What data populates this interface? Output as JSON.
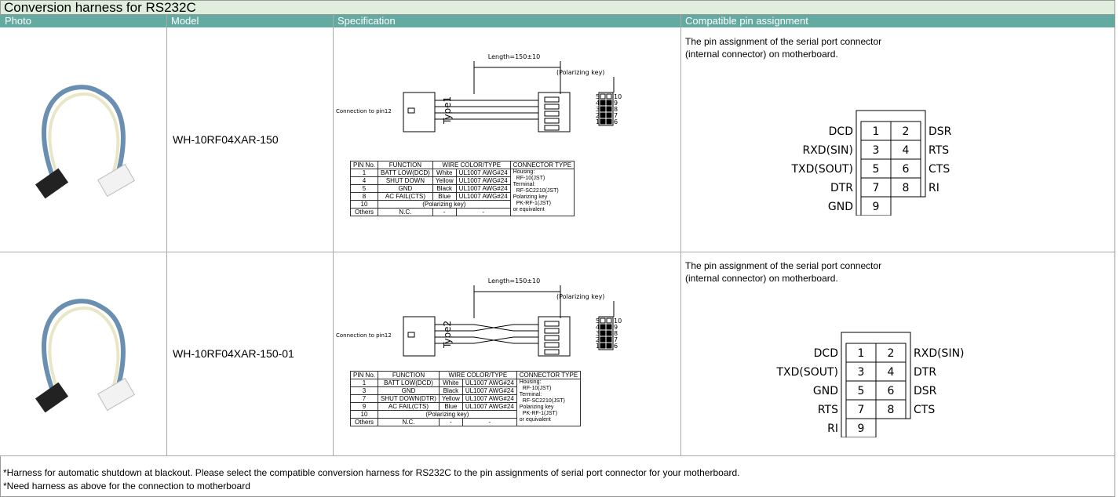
{
  "title": "Conversion harness for RS232C",
  "headers": [
    "Photo",
    "Model",
    "Specification",
    "Compatible pin assignment"
  ],
  "rows": [
    {
      "model": "WH-10RF04XAR-150",
      "spec": {
        "length": "Length=150±10",
        "polarizing_key": "(Polarizing key)",
        "connection": "Connection to pin12",
        "type": "Type1",
        "pin_numbers_left": [
          "5",
          "4",
          "3",
          "2",
          "1"
        ],
        "pin_numbers_right": [
          "10",
          "9",
          "8",
          "7",
          "6"
        ],
        "table_header": [
          "PIN No.",
          "FUNCTION",
          "WIRE COLOR/TYPE",
          "CONNECTOR TYPE"
        ],
        "table_rows": [
          [
            "1",
            "BATT LOW(DCD)",
            "White",
            "UL1007 AWG#24"
          ],
          [
            "4",
            "SHUT DOWN",
            "Yellow",
            "UL1007 AWG#24"
          ],
          [
            "5",
            "GND",
            "Black",
            "UL1007 AWG#24"
          ],
          [
            "8",
            "AC FAIL(CTS)",
            "Blue",
            "UL1007 AWG#24"
          ],
          [
            "10",
            "(Polarizing key)"
          ],
          [
            "Others",
            "N.C.",
            "-",
            "-"
          ]
        ],
        "connector_type": [
          "Housing:",
          "RF-10(JST)",
          "Terminal:",
          "RF-SC2210(JST)",
          "Polarizing key",
          "PK-RF-1(JST)",
          "or equivalent"
        ]
      },
      "pins": {
        "description": [
          "The pin assignment of the serial port connector",
          "(internal connector) on motherboard."
        ],
        "left": [
          "DCD",
          "RXD(SIN)",
          "TXD(SOUT)",
          "DTR",
          "GND"
        ],
        "right": [
          "DSR",
          "RTS",
          "CTS",
          "RI"
        ],
        "numbers": [
          [
            "1",
            "2"
          ],
          [
            "3",
            "4"
          ],
          [
            "5",
            "6"
          ],
          [
            "7",
            "8"
          ],
          [
            "9"
          ]
        ]
      }
    },
    {
      "model": "WH-10RF04XAR-150-01",
      "spec": {
        "length": "Length=150±10",
        "polarizing_key": "(Polarizing key)",
        "connection": "Connection to pin12",
        "type": "Type2",
        "pin_numbers_left": [
          "5",
          "4",
          "3",
          "2",
          "1"
        ],
        "pin_numbers_right": [
          "10",
          "9",
          "8",
          "7",
          "6"
        ],
        "table_header": [
          "PIN No.",
          "FUNCTION",
          "WIRE COLOR/TYPE",
          "CONNECTOR TYPE"
        ],
        "table_rows": [
          [
            "1",
            "BATT LOW(DCD)",
            "White",
            "UL1007 AWG#24"
          ],
          [
            "3",
            "GND",
            "Black",
            "UL1007 AWG#24"
          ],
          [
            "7",
            "SHUT DOWN(DTR)",
            "Yellow",
            "UL1007 AWG#24"
          ],
          [
            "9",
            "AC FAIL(CTS)",
            "Blue",
            "UL1007 AWG#24"
          ],
          [
            "10",
            "(Polarizing key)"
          ],
          [
            "Others",
            "N.C.",
            "-",
            "-"
          ]
        ],
        "connector_type": [
          "Housing:",
          "RF-10(JST)",
          "Terminal:",
          "RF-SC2210(JST)",
          "Polarizing key",
          "PK-RF-1(JST)",
          "or equivalent"
        ]
      },
      "pins": {
        "description": [
          "The pin assignment of the serial port connector",
          "(internal connector) on motherboard."
        ],
        "left": [
          "DCD",
          "TXD(SOUT)",
          "GND",
          "RTS",
          "RI"
        ],
        "right": [
          "RXD(SIN)",
          "DTR",
          "DSR",
          "CTS"
        ],
        "numbers": [
          [
            "1",
            "2"
          ],
          [
            "3",
            "4"
          ],
          [
            "5",
            "6"
          ],
          [
            "7",
            "8"
          ],
          [
            "9"
          ]
        ]
      }
    }
  ],
  "notes": [
    "*Harness for automatic shutdown at blackout.  Please select the compatible conversion harness for RS232C to the pin assignments of serial port connector for your motherboard.",
    "*Need harness as above for the connection to motherboard"
  ]
}
